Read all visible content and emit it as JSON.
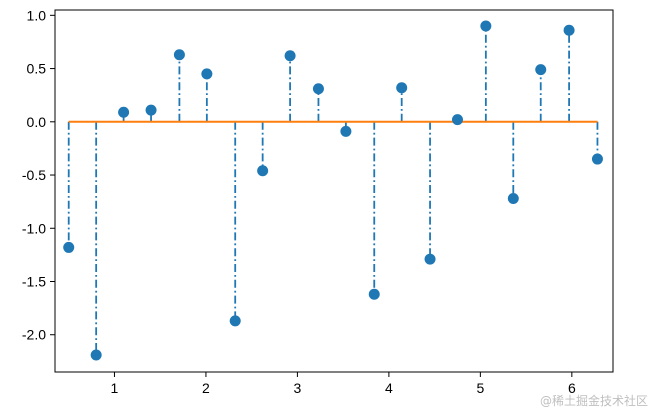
{
  "chart_data": {
    "type": "stem",
    "title": "",
    "xlabel": "",
    "ylabel": "",
    "baseline": 0,
    "xlim": [
      0.35,
      6.45
    ],
    "ylim": [
      -2.35,
      1.05
    ],
    "xticks": [
      1,
      2,
      3,
      4,
      5,
      6
    ],
    "yticks": [
      1.0,
      0.5,
      0.0,
      -0.5,
      -1.0,
      -1.5,
      -2.0
    ],
    "ytick_labels": [
      "1.0",
      "0.5",
      "0.0",
      "-0.5",
      "-1.0",
      "-1.5",
      "-2.0"
    ],
    "grid": false,
    "line_style": "dash-dot",
    "colors": {
      "stems": "#1f77b4",
      "markers": "#1f77b4",
      "baseline": "#ff7f0e"
    },
    "x": [
      0.5,
      0.8,
      1.1,
      1.4,
      1.71,
      2.01,
      2.32,
      2.62,
      2.92,
      3.23,
      3.53,
      3.84,
      4.14,
      4.45,
      4.75,
      5.06,
      5.36,
      5.66,
      5.97,
      6.28
    ],
    "values": [
      -1.18,
      -2.19,
      0.09,
      0.11,
      0.63,
      0.45,
      -1.87,
      -0.46,
      0.62,
      0.31,
      -0.09,
      -1.62,
      0.32,
      -1.29,
      0.02,
      0.9,
      -0.72,
      0.49,
      0.86,
      -0.35
    ]
  },
  "watermark": "@稀土掘金技术社区"
}
